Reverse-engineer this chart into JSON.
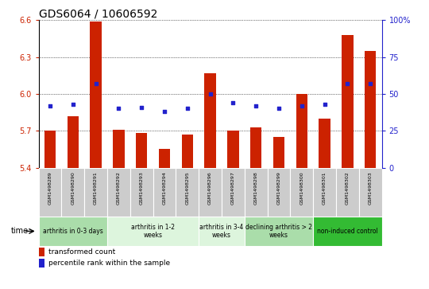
{
  "title": "GDS6064 / 10606592",
  "samples": [
    "GSM1498289",
    "GSM1498290",
    "GSM1498291",
    "GSM1498292",
    "GSM1498293",
    "GSM1498294",
    "GSM1498295",
    "GSM1498296",
    "GSM1498297",
    "GSM1498298",
    "GSM1498299",
    "GSM1498300",
    "GSM1498301",
    "GSM1498302",
    "GSM1498303"
  ],
  "bar_values": [
    5.7,
    5.82,
    6.59,
    5.71,
    5.68,
    5.55,
    5.67,
    6.17,
    5.7,
    5.73,
    5.65,
    6.0,
    5.8,
    6.48,
    6.35
  ],
  "dot_values": [
    42,
    43,
    57,
    40,
    41,
    38,
    40,
    50,
    44,
    42,
    40,
    42,
    43,
    57,
    57
  ],
  "ylim_left": [
    5.4,
    6.6
  ],
  "ylim_right": [
    0,
    100
  ],
  "yticks_left": [
    5.4,
    5.7,
    6.0,
    6.3,
    6.6
  ],
  "yticks_right": [
    0,
    25,
    50,
    75,
    100
  ],
  "bar_color": "#cc2200",
  "dot_color": "#2222cc",
  "background_color": "#ffffff",
  "groups": [
    {
      "label": "arthritis in 0-3 days",
      "start": 0,
      "end": 3,
      "color": "#aaddaa"
    },
    {
      "label": "arthritis in 1-2\nweeks",
      "start": 3,
      "end": 7,
      "color": "#ddf5dd"
    },
    {
      "label": "arthritis in 3-4\nweeks",
      "start": 7,
      "end": 9,
      "color": "#ddf5dd"
    },
    {
      "label": "declining arthritis > 2\nweeks",
      "start": 9,
      "end": 12,
      "color": "#aaddaa"
    },
    {
      "label": "non-induced control",
      "start": 12,
      "end": 15,
      "color": "#33bb33"
    }
  ],
  "legend_bar_label": "transformed count",
  "legend_dot_label": "percentile rank within the sample",
  "bar_bottom": 5.4,
  "sample_box_color": "#cccccc",
  "tick_fontsize": 7,
  "bar_width": 0.5
}
